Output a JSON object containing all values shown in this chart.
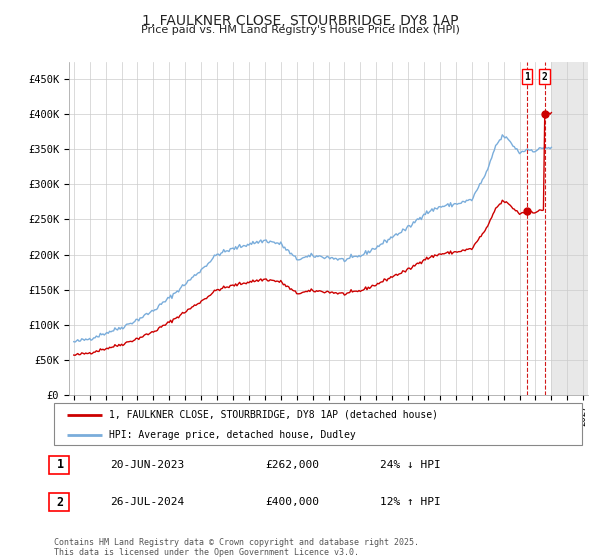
{
  "title": "1, FAULKNER CLOSE, STOURBRIDGE, DY8 1AP",
  "subtitle": "Price paid vs. HM Land Registry's House Price Index (HPI)",
  "hpi_color": "#7aaddb",
  "price_color": "#cc0000",
  "background_color": "#ffffff",
  "grid_color": "#cccccc",
  "future_shade_color": "#e8e8e8",
  "ylim": [
    0,
    475000
  ],
  "yticks": [
    0,
    50000,
    100000,
    150000,
    200000,
    250000,
    300000,
    350000,
    400000,
    450000
  ],
  "ytick_labels": [
    "£0",
    "£50K",
    "£100K",
    "£150K",
    "£200K",
    "£250K",
    "£300K",
    "£350K",
    "£400K",
    "£450K"
  ],
  "legend_label_red": "1, FAULKNER CLOSE, STOURBRIDGE, DY8 1AP (detached house)",
  "legend_label_blue": "HPI: Average price, detached house, Dudley",
  "annotation1_num": "1",
  "annotation1_date": "20-JUN-2023",
  "annotation1_price": "£262,000",
  "annotation1_hpi": "24% ↓ HPI",
  "annotation2_num": "2",
  "annotation2_date": "26-JUL-2024",
  "annotation2_price": "£400,000",
  "annotation2_hpi": "12% ↑ HPI",
  "footer": "Contains HM Land Registry data © Crown copyright and database right 2025.\nThis data is licensed under the Open Government Licence v3.0.",
  "sale1_x": 2023.47,
  "sale1_y": 262000,
  "sale2_x": 2024.57,
  "sale2_y": 400000,
  "future_start": 2025.0,
  "xlim_left": 1994.7,
  "xlim_right": 2027.3
}
